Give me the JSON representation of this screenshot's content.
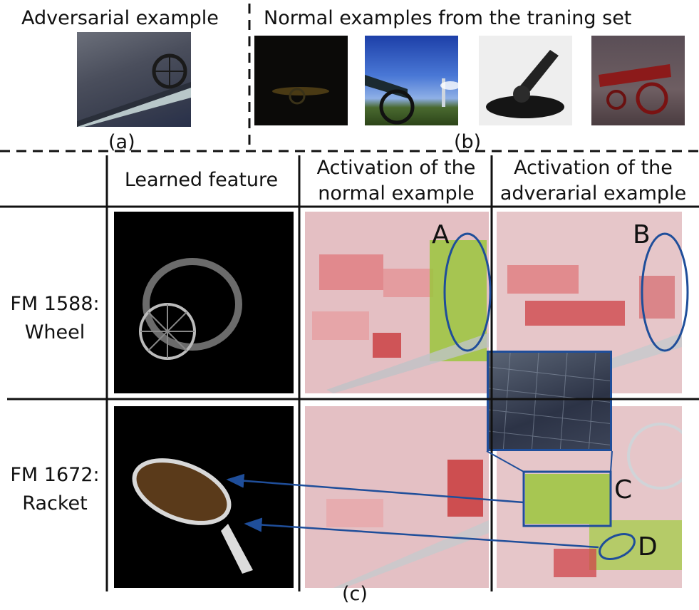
{
  "panel_a": {
    "title": "Adversarial example",
    "caption": "(a)"
  },
  "panel_b": {
    "title": "Normal examples from the traning set",
    "caption": "(b)"
  },
  "panel_c": {
    "caption": "(c)",
    "headers": {
      "col1": "Learned feature",
      "col2": "Activation of the normal example",
      "col3": "Activation of the adverarial example"
    },
    "rows": [
      {
        "label_line1": "FM 1588:",
        "label_line2": "Wheel"
      },
      {
        "label_line1": "FM 1672:",
        "label_line2": "Racket"
      }
    ],
    "markers": {
      "A": "A",
      "B": "B",
      "C": "C",
      "D": "D"
    }
  },
  "colors": {
    "annotation_blue": "#1f4e9a",
    "activation_red": "#d9534f",
    "activation_green": "#9bc53d"
  }
}
